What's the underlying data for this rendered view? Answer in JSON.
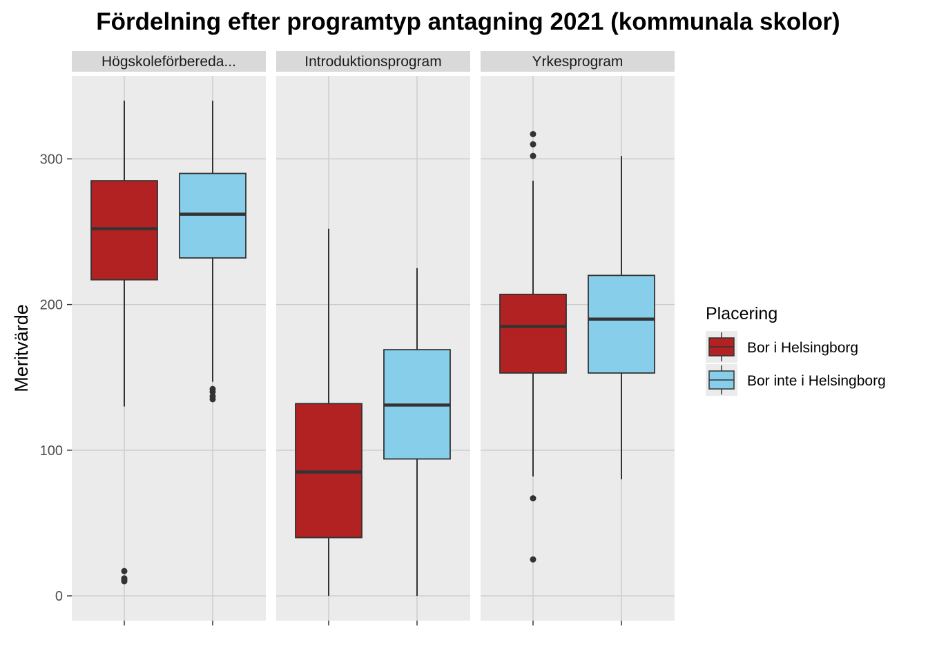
{
  "chart_data": {
    "type": "boxplot",
    "title": "Fördelning efter programtyp antagning 2021 (kommunala skolor)",
    "xlabel": "",
    "ylabel": "Meritvärde",
    "ylim": [
      -17,
      357
    ],
    "yticks": [
      0,
      100,
      200,
      300
    ],
    "grid": true,
    "legend": {
      "title": "Placering",
      "position": "right",
      "entries": [
        {
          "name": "Bor i Helsingborg",
          "color": "#B22222"
        },
        {
          "name": "Bor inte i Helsingborg",
          "color": "#87CEEB"
        }
      ]
    },
    "facets": [
      {
        "label": "Högskoleförbereda...",
        "boxes": [
          {
            "series": "Bor i Helsingborg",
            "whisker_low": 130,
            "q1": 217,
            "median": 252,
            "q3": 285,
            "whisker_high": 340,
            "outliers": [
              10,
              11,
              12,
              17
            ]
          },
          {
            "series": "Bor inte i Helsingborg",
            "whisker_low": 147,
            "q1": 232,
            "median": 262,
            "q3": 290,
            "whisker_high": 340,
            "outliers": [
              135,
              137,
              140,
              142
            ]
          }
        ]
      },
      {
        "label": "Introduktionsprogram",
        "boxes": [
          {
            "series": "Bor i Helsingborg",
            "whisker_low": 0,
            "q1": 40,
            "median": 85,
            "q3": 132,
            "whisker_high": 252,
            "outliers": []
          },
          {
            "series": "Bor inte i Helsingborg",
            "whisker_low": 0,
            "q1": 94,
            "median": 131,
            "q3": 169,
            "whisker_high": 225,
            "outliers": []
          }
        ]
      },
      {
        "label": "Yrkesprogram",
        "boxes": [
          {
            "series": "Bor i Helsingborg",
            "whisker_low": 82,
            "q1": 153,
            "median": 185,
            "q3": 207,
            "whisker_high": 285,
            "outliers": [
              25,
              67,
              302,
              310,
              317
            ]
          },
          {
            "series": "Bor inte i Helsingborg",
            "whisker_low": 80,
            "q1": 153,
            "median": 190,
            "q3": 220,
            "whisker_high": 302,
            "outliers": []
          }
        ]
      }
    ]
  }
}
